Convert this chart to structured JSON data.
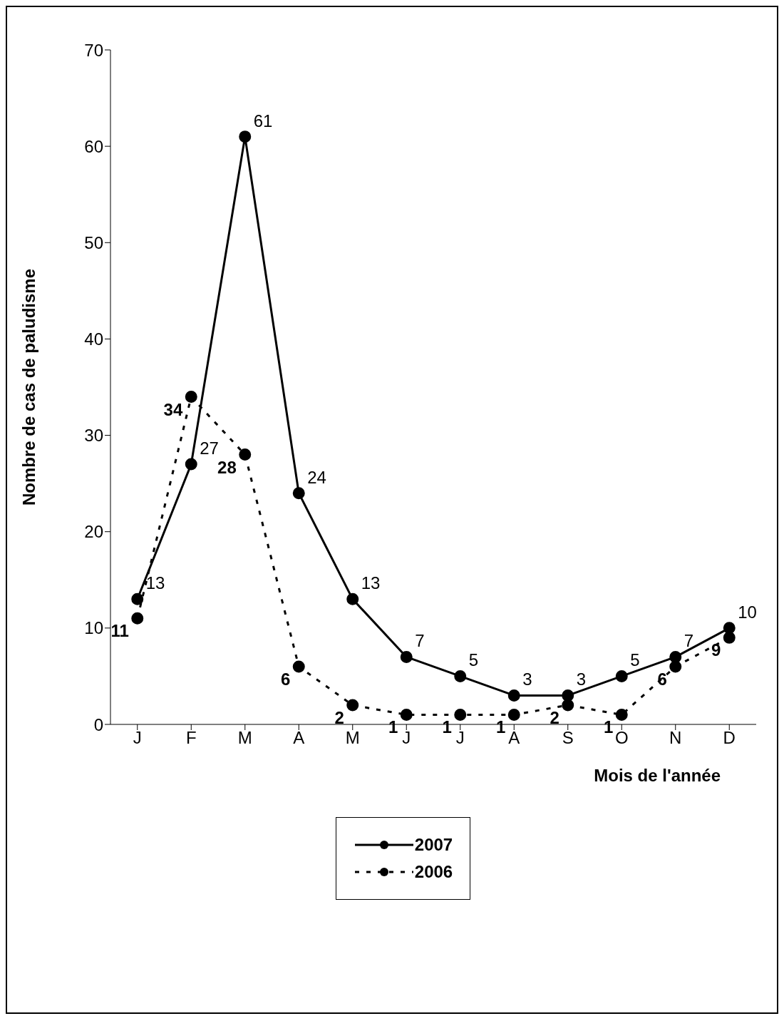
{
  "chart_data": {
    "type": "line",
    "xlabel": "Mois de l'année",
    "ylabel": "Nombre de cas de paludisme",
    "categories": [
      "J",
      "F",
      "M",
      "A",
      "M",
      "J",
      "J",
      "A",
      "S",
      "O",
      "N",
      "D"
    ],
    "series": [
      {
        "name": "2007",
        "color": "#000000",
        "line_style": "solid",
        "values": [
          13,
          27,
          61,
          24,
          13,
          7,
          5,
          3,
          3,
          5,
          7,
          10
        ]
      },
      {
        "name": "2006",
        "color": "#000000",
        "line_style": "dotted",
        "values": [
          11,
          34,
          28,
          6,
          2,
          1,
          1,
          1,
          2,
          1,
          6,
          9
        ]
      }
    ],
    "ylim": [
      0,
      70
    ],
    "yticks": [
      0,
      10,
      20,
      30,
      40,
      50,
      60,
      70
    ],
    "grid": false,
    "legend": "bottom",
    "marker": "circle",
    "data_labels": true
  }
}
